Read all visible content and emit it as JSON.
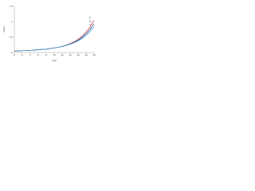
{
  "chart_data": {
    "type": "line",
    "y_label": "Value",
    "x_label": "Year",
    "x": [
      0,
      1,
      2,
      3,
      4,
      5,
      6,
      7,
      8,
      9,
      10,
      11,
      12,
      13,
      14,
      15,
      16,
      17,
      18,
      19,
      20
    ],
    "xlim": [
      0,
      20
    ],
    "xticks": [
      0,
      2,
      4,
      6,
      8,
      10,
      12,
      14,
      16,
      18,
      20
    ],
    "ylim": [
      0,
      1.5
    ],
    "yticks": [
      0,
      0.5,
      1,
      1.5
    ],
    "grid": false,
    "series": [
      {
        "name": "A",
        "color": "#b03030",
        "values": [
          0.05,
          0.05,
          0.06,
          0.06,
          0.07,
          0.08,
          0.09,
          0.1,
          0.11,
          0.13,
          0.15,
          0.17,
          0.2,
          0.24,
          0.29,
          0.35,
          0.43,
          0.53,
          0.66,
          0.83,
          1.05
        ]
      },
      {
        "name": "B",
        "color": "#2a3a8a",
        "values": [
          0.05,
          0.05,
          0.06,
          0.06,
          0.07,
          0.08,
          0.09,
          0.1,
          0.11,
          0.13,
          0.15,
          0.17,
          0.2,
          0.23,
          0.28,
          0.33,
          0.4,
          0.49,
          0.6,
          0.75,
          0.93
        ]
      },
      {
        "name": "C",
        "color": "#3a9ad0",
        "values": [
          0.05,
          0.05,
          0.06,
          0.06,
          0.07,
          0.08,
          0.09,
          0.1,
          0.11,
          0.13,
          0.15,
          0.17,
          0.2,
          0.23,
          0.27,
          0.32,
          0.38,
          0.46,
          0.56,
          0.68,
          0.82
        ]
      }
    ]
  }
}
